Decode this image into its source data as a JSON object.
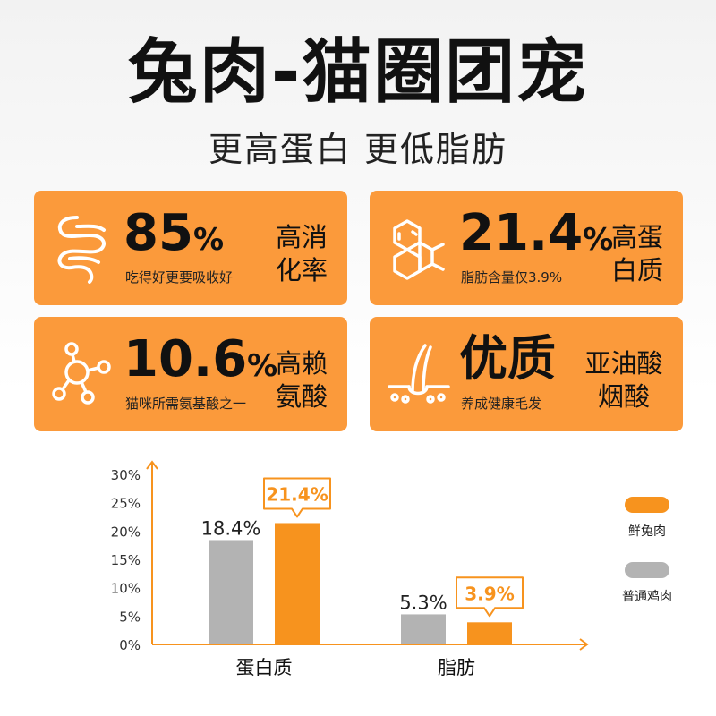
{
  "header": {
    "title": "兔肉-猫圈团宠",
    "subtitle": "更高蛋白 更低脂肪"
  },
  "cards": [
    {
      "value": "85",
      "unit": "%",
      "caption": "吃得好更要吸收好",
      "side_line1": "高消",
      "side_line2": "化率",
      "icon": "intestine-icon"
    },
    {
      "value": "21.4",
      "unit": "%",
      "caption": "脂肪含量仅3.9%",
      "side_line1": "高蛋",
      "side_line2": "白质",
      "icon": "hexagon-molecule-icon"
    },
    {
      "value": "10.6",
      "unit": "%",
      "caption": "猫咪所需氨基酸之一",
      "side_line1": "高赖",
      "side_line2": "氨酸",
      "icon": "molecule-nodes-icon"
    },
    {
      "value": "优质",
      "unit": "",
      "caption": "养成健康毛发",
      "side_line1": "亚油酸",
      "side_line2": "烟酸",
      "icon": "hair-follicle-icon"
    }
  ],
  "colors": {
    "accent": "#fb9a3b",
    "accent_dark": "#f7931e",
    "gray_bar": "#b3b3b3",
    "text": "#111111"
  },
  "chart_data": {
    "type": "bar",
    "categories": [
      "蛋白质",
      "脂肪"
    ],
    "series": [
      {
        "name": "普通鸡肉",
        "values": [
          18.4,
          5.3
        ],
        "labels": [
          "18.4%",
          "5.3%"
        ],
        "color": "#b3b3b3"
      },
      {
        "name": "鲜兔肉",
        "values": [
          21.4,
          3.9
        ],
        "labels": [
          "21.4%",
          "3.9%"
        ],
        "color": "#f7931e"
      }
    ],
    "y_ticks": [
      "0%",
      "5%",
      "10%",
      "15%",
      "20%",
      "25%",
      "30%"
    ],
    "ylim": [
      0,
      30
    ],
    "legend_position": "right",
    "legend": [
      "鲜兔肉",
      "普通鸡肉"
    ],
    "grid": false
  }
}
